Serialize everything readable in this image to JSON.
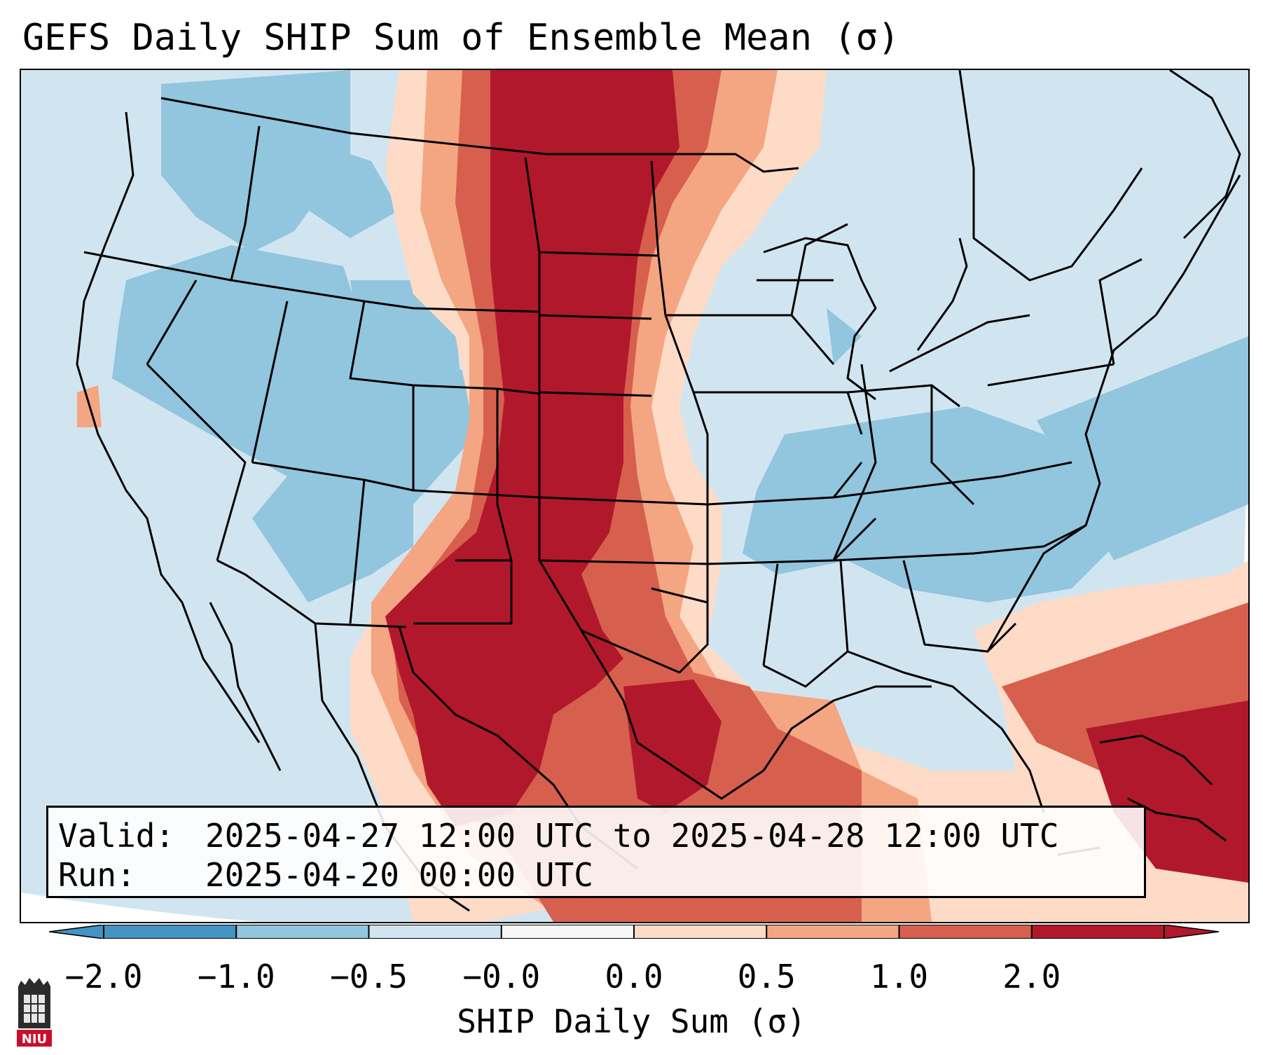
{
  "title": "GEFS Daily SHIP Sum of Ensemble Mean (σ)",
  "valid_box": {
    "valid_label": "Valid:",
    "valid_value": "2025-04-27 12:00 UTC to 2025-04-28 12:00 UTC",
    "run_label": "Run:",
    "run_value": "2025-04-20 00:00 UTC"
  },
  "colorbar": {
    "label": "SHIP Daily Sum (σ)",
    "ticks": [
      "−2.0",
      "−1.0",
      "−0.5",
      "−0.0",
      "0.0",
      "0.5",
      "1.0",
      "2.0"
    ],
    "colors": [
      "#4393c3",
      "#92c5de",
      "#d1e5f0",
      "#f7f7f7",
      "#fddbc7",
      "#f4a582",
      "#d6604d",
      "#b2182b"
    ],
    "extend": "both"
  },
  "palette": {
    "strong_negative": "#4393c3",
    "negative": "#92c5de",
    "weak_negative": "#d1e5f0",
    "weak_positive": "#fddbc7",
    "positive": "#f4a582",
    "strong_positive": "#d6604d",
    "extreme_positive": "#b2182b"
  },
  "logo": {
    "text": "NIU"
  }
}
